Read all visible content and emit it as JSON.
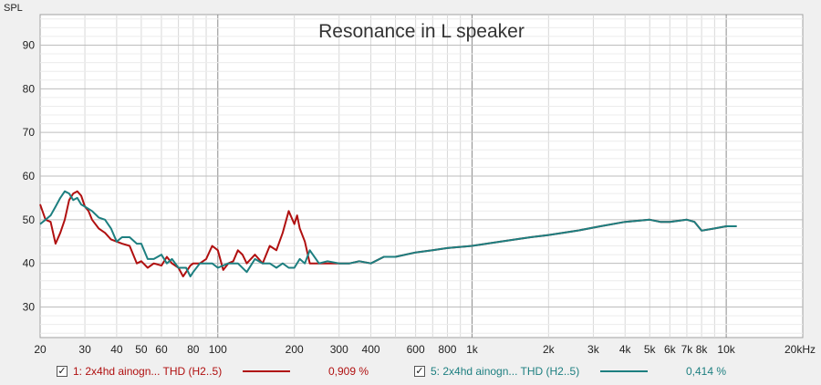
{
  "chart_data": {
    "type": "line",
    "title": "Resonance in L speaker",
    "ylabel": "SPL",
    "xlabel": "",
    "x_scale": "log",
    "xlim": [
      20,
      20000
    ],
    "ylim": [
      23,
      97
    ],
    "grid": true,
    "x_tick_labels": [
      "20",
      "30",
      "40",
      "50",
      "60",
      "80",
      "100",
      "200",
      "300",
      "400",
      "600",
      "800",
      "1k",
      "2k",
      "3k",
      "4k",
      "5k",
      "6k",
      "7k",
      "8k",
      "10k",
      "20kHz"
    ],
    "y_tick_labels": [
      "30",
      "40",
      "50",
      "60",
      "70",
      "80",
      "90"
    ],
    "series": [
      {
        "name": "1: 2x4hd ainogn... THD (H2..5)",
        "legend_value": "0,909 %",
        "color": "#b01010",
        "checked": true,
        "x": [
          20,
          21,
          22,
          23,
          24,
          25,
          26,
          27,
          28,
          29,
          30,
          31,
          32,
          34,
          36,
          38,
          40,
          42,
          45,
          48,
          50,
          53,
          56,
          60,
          63,
          66,
          70,
          73,
          75,
          78,
          80,
          85,
          90,
          95,
          100,
          105,
          110,
          115,
          120,
          125,
          130,
          140,
          150,
          160,
          170,
          180,
          190,
          200,
          205,
          210,
          220,
          230,
          250,
          270,
          300,
          330,
          360,
          400,
          450,
          500,
          600,
          700,
          800,
          1000,
          1300,
          1700,
          2000,
          2600,
          3200,
          4000,
          5000,
          5500,
          6000,
          7000,
          7500,
          8000,
          9000,
          10000,
          11000
        ],
        "y": [
          53.5,
          50,
          49.5,
          44.5,
          47,
          50,
          54.5,
          56,
          56.5,
          55.5,
          53,
          52,
          50,
          48,
          47,
          45.5,
          45,
          44.5,
          44,
          40,
          40.5,
          39,
          40,
          39.5,
          41.5,
          40,
          39,
          37,
          38,
          39.5,
          40,
          40,
          41,
          44,
          43,
          38.5,
          40,
          40.5,
          43,
          42,
          40,
          42,
          40,
          44,
          43,
          47,
          52,
          49,
          51,
          48,
          45,
          40,
          40,
          40,
          40,
          40,
          40.5,
          40,
          41.5,
          41.5,
          42.5,
          43,
          43.5,
          44,
          45,
          46,
          46.5,
          47.5,
          48.5,
          49.5,
          50,
          49.5,
          49.5,
          50,
          49.5,
          47.5,
          48,
          48.5,
          48.5
        ]
      },
      {
        "name": "5: 2x4hd ainogn... THD (H2..5)",
        "legend_value": "0,414 %",
        "color": "#1d7f80",
        "checked": true,
        "x": [
          20,
          21,
          22,
          23,
          24,
          25,
          26,
          27,
          28,
          29,
          30,
          32,
          34,
          36,
          38,
          40,
          42,
          45,
          48,
          50,
          53,
          56,
          60,
          63,
          66,
          70,
          73,
          75,
          78,
          80,
          85,
          90,
          95,
          100,
          110,
          120,
          130,
          140,
          150,
          160,
          170,
          180,
          190,
          200,
          210,
          220,
          230,
          250,
          270,
          300,
          330,
          360,
          400,
          450,
          500,
          600,
          700,
          800,
          1000,
          1300,
          1700,
          2000,
          2600,
          3200,
          4000,
          5000,
          5500,
          6000,
          7000,
          7500,
          8000,
          9000,
          10000,
          11000
        ],
        "y": [
          49,
          50,
          51,
          53,
          55,
          56.5,
          56,
          54.5,
          55,
          53.5,
          53,
          52,
          50.5,
          50,
          48,
          45,
          46,
          46,
          44.5,
          44.5,
          41,
          41,
          42,
          40,
          41,
          39,
          39,
          39,
          37,
          38,
          40,
          40,
          40,
          39,
          40,
          40,
          38,
          41,
          40,
          40,
          39,
          40,
          39,
          39,
          41,
          40,
          43,
          40,
          40.5,
          40,
          40,
          40.5,
          40,
          41.5,
          41.5,
          42.5,
          43,
          43.5,
          44,
          45,
          46,
          46.5,
          47.5,
          48.5,
          49.5,
          50,
          49.5,
          49.5,
          50,
          49.5,
          47.5,
          48,
          48.5,
          48.5
        ]
      }
    ],
    "legend_placement": "bottom"
  }
}
